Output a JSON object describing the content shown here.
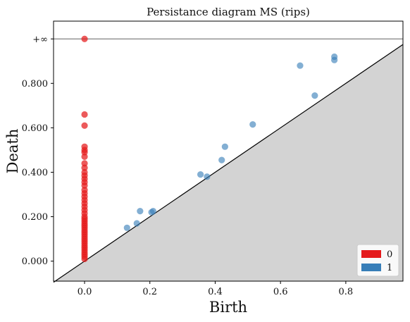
{
  "chart_data": {
    "type": "scatter",
    "title": "Persistance diagram MS (rips)",
    "xlabel": "Birth",
    "ylabel": "Death",
    "xlim": [
      -0.095,
      0.975
    ],
    "ylim": [
      -0.09,
      1.08
    ],
    "x_ticks": [
      0.0,
      0.2,
      0.4,
      0.6,
      0.8
    ],
    "x_tick_labels": [
      "0.0",
      "0.2",
      "0.4",
      "0.6",
      "0.8"
    ],
    "y_ticks": [
      0.0,
      0.2,
      0.4,
      0.6,
      0.8
    ],
    "y_tick_labels": [
      "0.000",
      "0.200",
      "0.400",
      "0.600",
      "0.800"
    ],
    "infinity_value": 1.0,
    "infinity_label": "+∞",
    "diagonal": true,
    "grid": false,
    "legend_position": "bottom-right",
    "colors": {
      "dim0": "#e41a1c",
      "dim1": "#377eb8",
      "below_diagonal": "#d3d3d3",
      "infinity_line": "#808080"
    },
    "series": [
      {
        "name": "0",
        "color": "#e41a1c",
        "points": [
          [
            0.0,
            1.0
          ],
          [
            0.0,
            0.66
          ],
          [
            0.0,
            0.61
          ],
          [
            0.0,
            0.515
          ],
          [
            0.0,
            0.5
          ],
          [
            0.0,
            0.49
          ],
          [
            0.0,
            0.47
          ],
          [
            0.0,
            0.44
          ],
          [
            0.0,
            0.42
          ],
          [
            0.0,
            0.4
          ],
          [
            0.0,
            0.385
          ],
          [
            0.0,
            0.37
          ],
          [
            0.0,
            0.355
          ],
          [
            0.0,
            0.34
          ],
          [
            0.0,
            0.32
          ],
          [
            0.0,
            0.305
          ],
          [
            0.0,
            0.29
          ],
          [
            0.0,
            0.275
          ],
          [
            0.0,
            0.26
          ],
          [
            0.0,
            0.245
          ],
          [
            0.0,
            0.23
          ],
          [
            0.0,
            0.215
          ],
          [
            0.0,
            0.2
          ],
          [
            0.0,
            0.19
          ],
          [
            0.0,
            0.18
          ],
          [
            0.0,
            0.17
          ],
          [
            0.0,
            0.16
          ],
          [
            0.0,
            0.15
          ],
          [
            0.0,
            0.14
          ],
          [
            0.0,
            0.13
          ],
          [
            0.0,
            0.12
          ],
          [
            0.0,
            0.11
          ],
          [
            0.0,
            0.1
          ],
          [
            0.0,
            0.09
          ],
          [
            0.0,
            0.08
          ],
          [
            0.0,
            0.07
          ],
          [
            0.0,
            0.06
          ],
          [
            0.0,
            0.05
          ],
          [
            0.0,
            0.04
          ],
          [
            0.0,
            0.03
          ],
          [
            0.0,
            0.02
          ],
          [
            0.0,
            0.01
          ]
        ]
      },
      {
        "name": "1",
        "color": "#377eb8",
        "points": [
          [
            0.13,
            0.15
          ],
          [
            0.16,
            0.17
          ],
          [
            0.17,
            0.225
          ],
          [
            0.205,
            0.22
          ],
          [
            0.21,
            0.225
          ],
          [
            0.355,
            0.39
          ],
          [
            0.375,
            0.38
          ],
          [
            0.42,
            0.455
          ],
          [
            0.43,
            0.515
          ],
          [
            0.515,
            0.615
          ],
          [
            0.66,
            0.88
          ],
          [
            0.705,
            0.745
          ],
          [
            0.765,
            0.905
          ],
          [
            0.765,
            0.92
          ]
        ]
      }
    ]
  }
}
